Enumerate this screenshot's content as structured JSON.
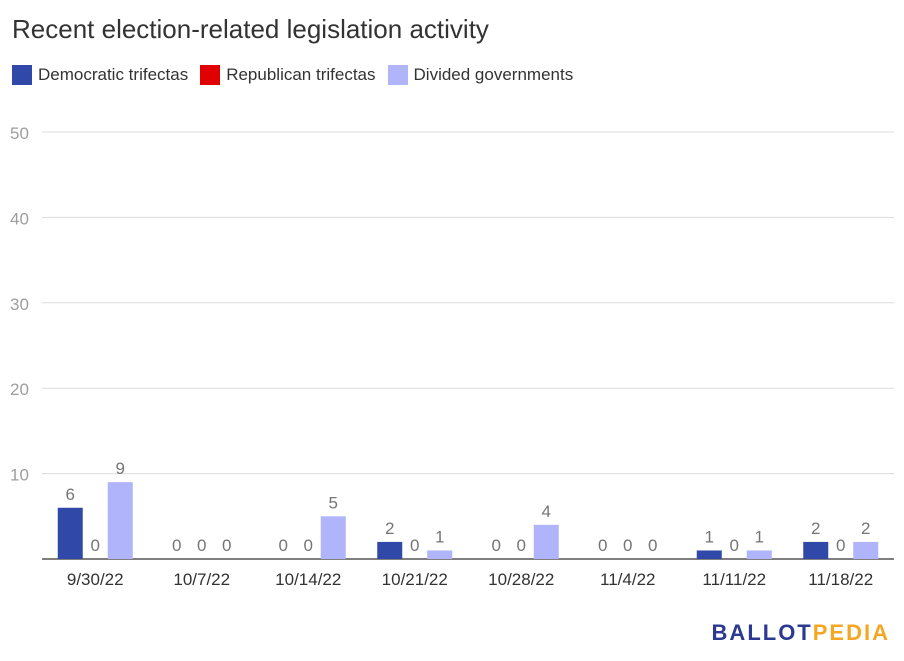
{
  "chart_data": {
    "type": "bar",
    "title": "Recent election-related legislation activity",
    "categories": [
      "9/30/22",
      "10/7/22",
      "10/14/22",
      "10/21/22",
      "10/28/22",
      "11/4/22",
      "11/11/22",
      "11/18/22"
    ],
    "series": [
      {
        "name": "Democratic trifectas",
        "color": "#3048a8",
        "values": [
          6,
          0,
          0,
          2,
          0,
          0,
          1,
          2
        ]
      },
      {
        "name": "Republican trifectas",
        "color": "#e00000",
        "values": [
          0,
          0,
          0,
          0,
          0,
          0,
          0,
          0
        ]
      },
      {
        "name": "Divided governments",
        "color": "#b0b4fa",
        "values": [
          9,
          0,
          5,
          1,
          4,
          0,
          1,
          2
        ]
      }
    ],
    "ylim": [
      0,
      50
    ],
    "yticks": [
      10,
      20,
      30,
      40,
      50
    ],
    "grid": true,
    "legend_position": "top-left",
    "data_labels": true
  },
  "branding": {
    "logo_part1": "BALLOT",
    "logo_part2": "PEDIA"
  }
}
